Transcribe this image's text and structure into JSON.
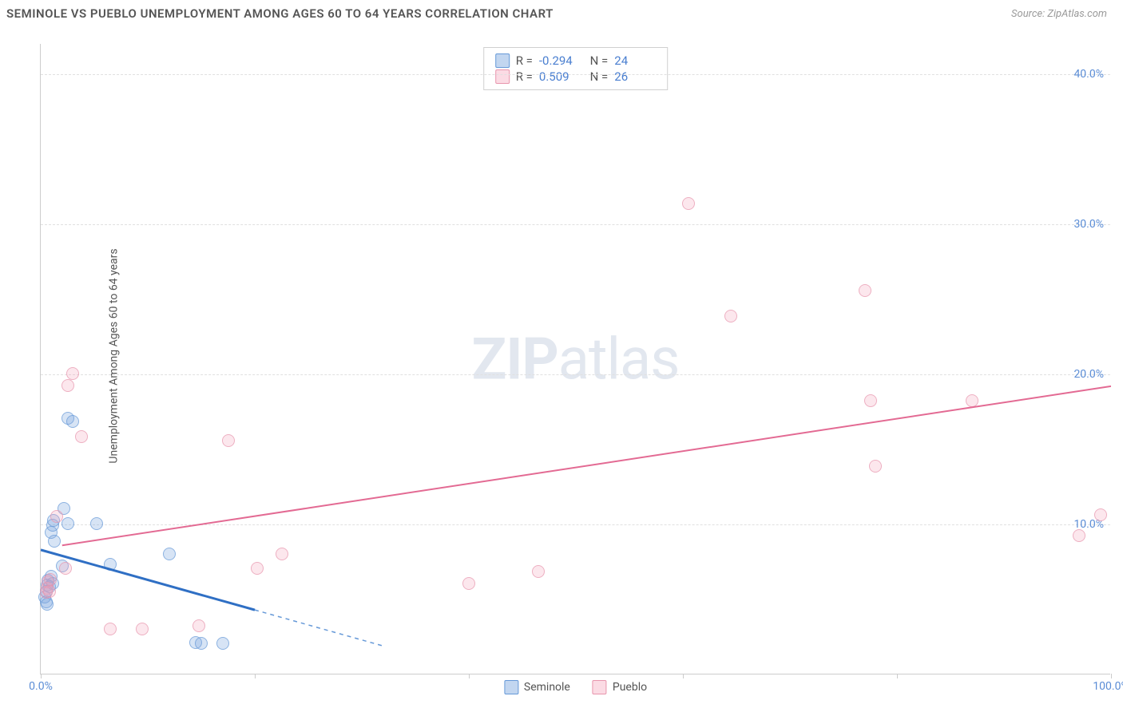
{
  "header": {
    "title": "SEMINOLE VS PUEBLO UNEMPLOYMENT AMONG AGES 60 TO 64 YEARS CORRELATION CHART",
    "source": "Source: ZipAtlas.com"
  },
  "watermark": {
    "bold": "ZIP",
    "light": "atlas"
  },
  "chart": {
    "type": "scatter",
    "y_label": "Unemployment Among Ages 60 to 64 years",
    "xlim": [
      0,
      100
    ],
    "ylim": [
      0,
      42
    ],
    "x_ticks": [
      {
        "pos": 0,
        "label": "0.0%"
      },
      {
        "pos": 20,
        "label": ""
      },
      {
        "pos": 40,
        "label": ""
      },
      {
        "pos": 60,
        "label": ""
      },
      {
        "pos": 80,
        "label": ""
      },
      {
        "pos": 100,
        "label": "100.0%"
      }
    ],
    "y_ticks": [
      {
        "pos": 10,
        "label": "10.0%"
      },
      {
        "pos": 20,
        "label": "20.0%"
      },
      {
        "pos": 30,
        "label": "30.0%"
      },
      {
        "pos": 40,
        "label": "40.0%"
      }
    ],
    "grid_color": "#e0e0e0",
    "background_color": "#ffffff",
    "series": [
      {
        "name": "Seminole",
        "color": "#77a3dd",
        "border": "#6699d8",
        "points": [
          [
            0.4,
            5.1
          ],
          [
            0.5,
            5.5
          ],
          [
            0.6,
            5.9
          ],
          [
            0.7,
            6.2
          ],
          [
            0.8,
            5.8
          ],
          [
            0.5,
            4.8
          ],
          [
            0.6,
            4.6
          ],
          [
            1.0,
            9.4
          ],
          [
            1.1,
            9.9
          ],
          [
            1.2,
            10.2
          ],
          [
            1.3,
            8.8
          ],
          [
            1.0,
            6.5
          ],
          [
            1.1,
            6.0
          ],
          [
            2.0,
            7.2
          ],
          [
            2.2,
            11.0
          ],
          [
            2.5,
            10.0
          ],
          [
            2.5,
            17.0
          ],
          [
            3.0,
            16.8
          ],
          [
            5.2,
            10.0
          ],
          [
            6.5,
            7.3
          ],
          [
            12.0,
            8.0
          ],
          [
            14.5,
            2.1
          ],
          [
            15.0,
            2.0
          ],
          [
            17.0,
            2.0
          ]
        ],
        "trend": {
          "x1": 0,
          "y1": 8.3,
          "x2": 20,
          "y2": 4.3,
          "x_dash_end": 32
        }
      },
      {
        "name": "Pueblo",
        "color": "#f4a6bc",
        "border": "#e895ad",
        "points": [
          [
            0.5,
            5.4
          ],
          [
            0.6,
            5.7
          ],
          [
            0.7,
            6.1
          ],
          [
            0.8,
            5.5
          ],
          [
            0.9,
            6.3
          ],
          [
            1.5,
            10.5
          ],
          [
            2.3,
            7.0
          ],
          [
            2.5,
            19.2
          ],
          [
            3.0,
            20.0
          ],
          [
            3.8,
            15.8
          ],
          [
            6.5,
            3.0
          ],
          [
            9.5,
            3.0
          ],
          [
            14.8,
            3.2
          ],
          [
            17.5,
            15.5
          ],
          [
            20.2,
            7.0
          ],
          [
            22.5,
            8.0
          ],
          [
            40.0,
            6.0
          ],
          [
            46.5,
            6.8
          ],
          [
            60.5,
            31.3
          ],
          [
            64.5,
            23.8
          ],
          [
            77.0,
            25.5
          ],
          [
            77.5,
            18.2
          ],
          [
            78.0,
            13.8
          ],
          [
            87.0,
            18.2
          ],
          [
            97.0,
            9.2
          ],
          [
            99.0,
            10.6
          ]
        ],
        "trend": {
          "x1": 2,
          "y1": 8.6,
          "x2": 100,
          "y2": 19.2
        }
      }
    ],
    "stats_legend": [
      {
        "swatch": "blue",
        "R": "-0.294",
        "N": "24"
      },
      {
        "swatch": "pink",
        "R": "0.509",
        "N": "26"
      }
    ],
    "series_legend": [
      {
        "swatch": "blue",
        "label": "Seminole"
      },
      {
        "swatch": "pink",
        "label": "Pueblo"
      }
    ]
  }
}
